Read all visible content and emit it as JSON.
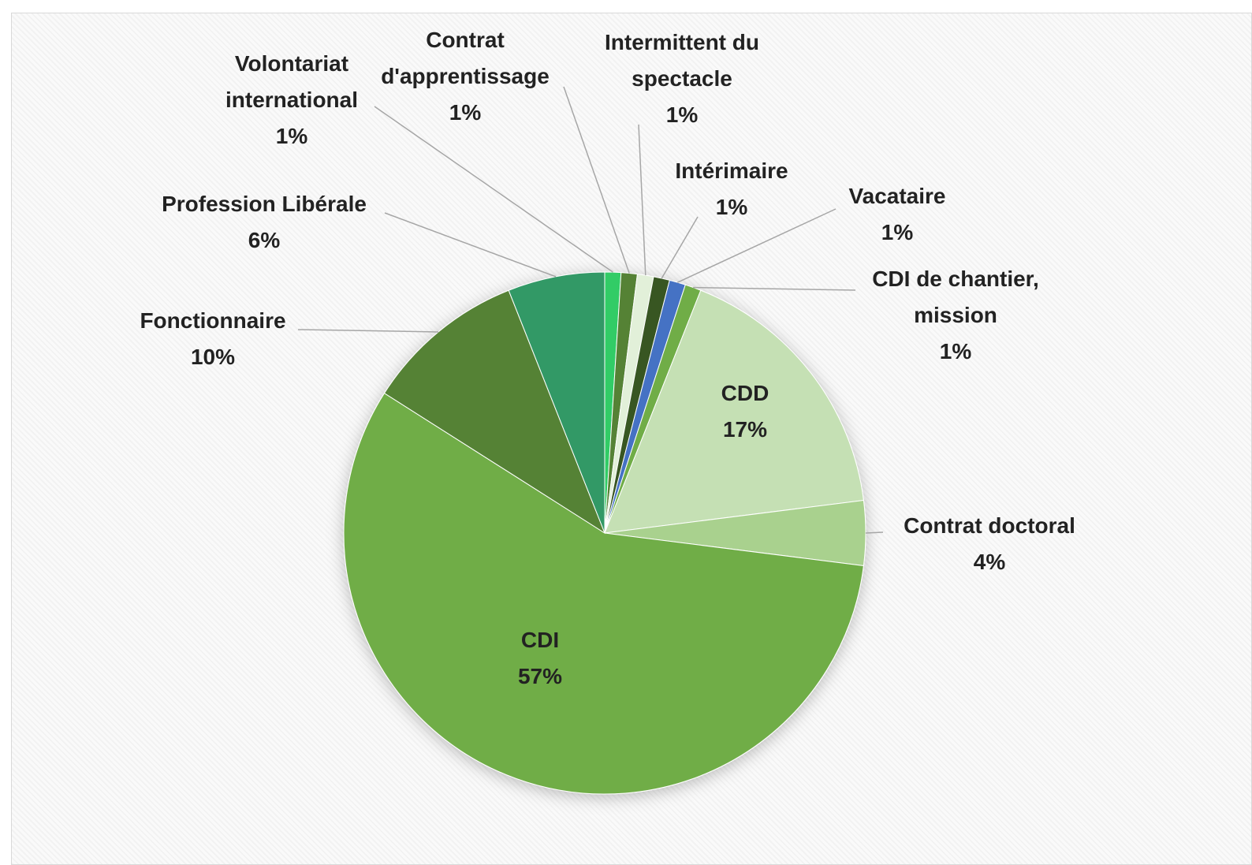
{
  "chart_data": {
    "type": "pie",
    "categories": [
      "Volontariat international",
      "Contrat d'apprentissage",
      "Intermittent du spectacle",
      "Intérimaire",
      "Vacataire",
      "CDI de chantier, mission",
      "CDD",
      "Contrat doctoral",
      "CDI",
      "Fonctionnaire",
      "Profession Libérale"
    ],
    "values": [
      1,
      1,
      1,
      1,
      1,
      1,
      17,
      4,
      57,
      10,
      6
    ],
    "value_labels": [
      "1%",
      "1%",
      "1%",
      "1%",
      "1%",
      "1%",
      "17%",
      "4%",
      "57%",
      "10%",
      "6%"
    ],
    "colors": [
      "#33cc66",
      "#548235",
      "#e2f0d9",
      "#375623",
      "#4472c4",
      "#70ad47",
      "#c5e0b4",
      "#a9d18e",
      "#70ad47",
      "#548235",
      "#339966"
    ]
  }
}
